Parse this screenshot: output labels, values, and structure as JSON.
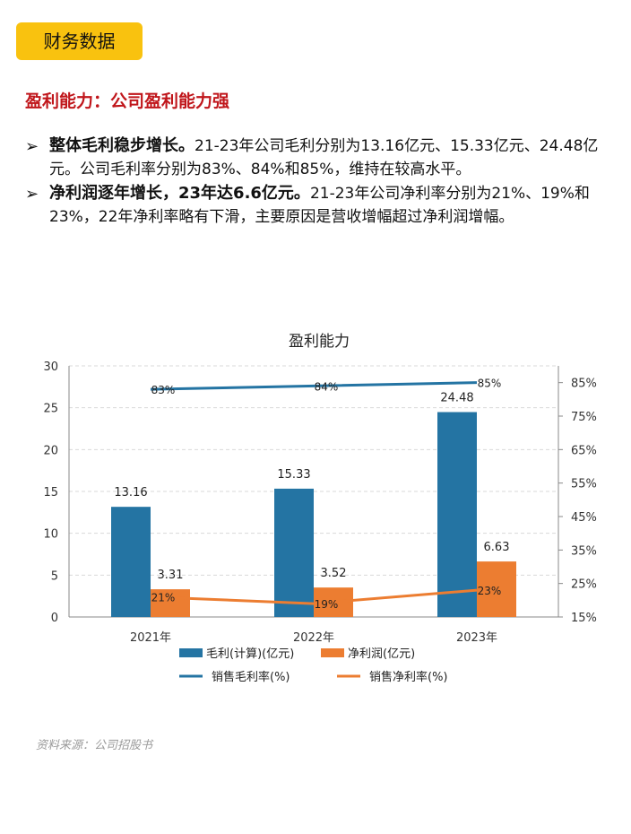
{
  "header": {
    "tag": "财务数据"
  },
  "section": {
    "title": "盈利能力：公司盈利能力强"
  },
  "bullets": [
    {
      "marker": "➢",
      "bold": "整体毛利稳步增长。",
      "text": "21-23年公司毛利分别为13.16亿元、15.33亿元、24.48亿元。公司毛利率分别为83%、84%和85%，维持在较高水平。"
    },
    {
      "marker": "➢",
      "bold": "净利润逐年增长，23年达6.6亿元。",
      "text": "21-23年公司净利率分别为21%、19%和23%，22年净利率略有下滑，主要原因是营收增幅超过净利润增幅。"
    }
  ],
  "chart_data": {
    "type": "bar",
    "title": "盈利能力",
    "categories": [
      "2021年",
      "2022年",
      "2023年"
    ],
    "series": [
      {
        "name": "毛利(计算)(亿元)",
        "kind": "bar",
        "axis": "left",
        "color": "#2474a3",
        "values": [
          13.16,
          15.33,
          24.48
        ],
        "labels": [
          "13.16",
          "15.33",
          "24.48"
        ]
      },
      {
        "name": "净利润(亿元)",
        "kind": "bar",
        "axis": "left",
        "color": "#ec7d31",
        "values": [
          3.31,
          3.52,
          6.63
        ],
        "labels": [
          "3.31",
          "3.52",
          "6.63"
        ]
      },
      {
        "name": "销售毛利率(%)",
        "kind": "line",
        "axis": "right",
        "color": "#2474a3",
        "values": [
          83,
          84,
          85
        ],
        "labels": [
          "83%",
          "84%",
          "85%"
        ]
      },
      {
        "name": "销售净利率(%)",
        "kind": "line",
        "axis": "right",
        "color": "#ec7d31",
        "values": [
          21,
          19,
          23
        ],
        "labels": [
          "21%",
          "19%",
          "23%"
        ]
      }
    ],
    "y_left": {
      "min": 0,
      "max": 30,
      "ticks": [
        "0",
        "5",
        "10",
        "15",
        "20",
        "25",
        "30"
      ]
    },
    "y_right": {
      "min": 15,
      "max": 90,
      "ticks": [
        "15%",
        "25%",
        "35%",
        "45%",
        "55%",
        "65%",
        "75%",
        "85%"
      ],
      "tick_values": [
        15,
        25,
        35,
        45,
        55,
        65,
        75,
        85
      ]
    },
    "grid": "horizontal-dashed",
    "legend": "bottom"
  },
  "source": {
    "text": "资料来源：公司招股书"
  }
}
